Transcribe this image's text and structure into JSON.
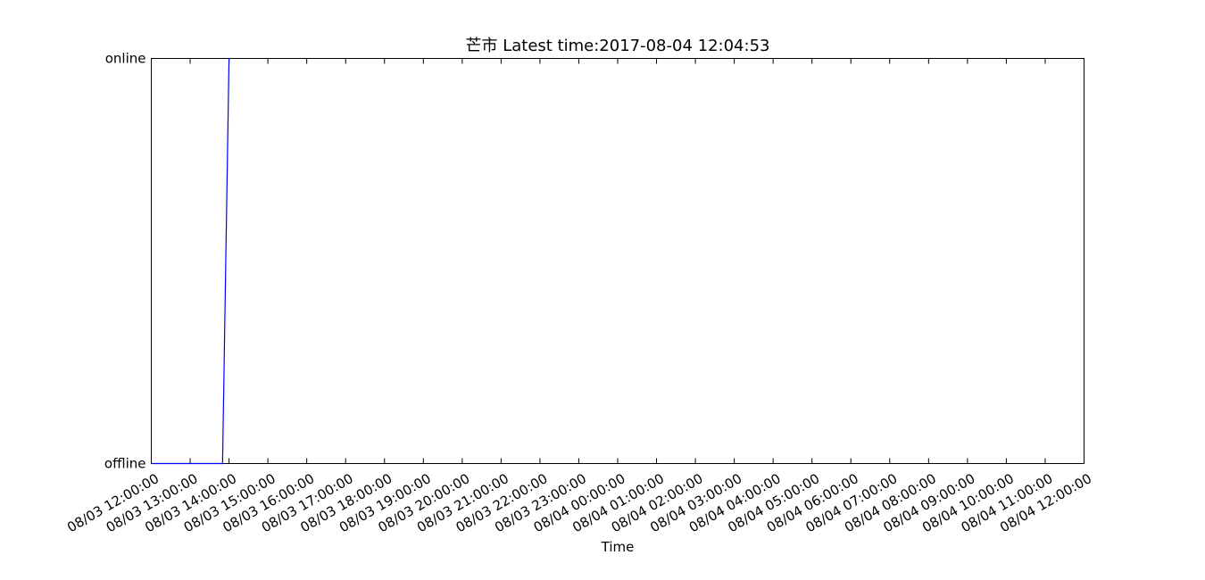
{
  "chart_data": {
    "type": "line",
    "title": "芒市 Latest time:2017-08-04 12:04:53",
    "xlabel": "Time",
    "ylabel": "",
    "y_categories": [
      "offline",
      "online"
    ],
    "x_ticks": [
      "08/03 12:00:00",
      "08/03 13:00:00",
      "08/03 14:00:00",
      "08/03 15:00:00",
      "08/03 16:00:00",
      "08/03 17:00:00",
      "08/03 18:00:00",
      "08/03 19:00:00",
      "08/03 20:00:00",
      "08/03 21:00:00",
      "08/03 22:00:00",
      "08/03 23:00:00",
      "08/04 00:00:00",
      "08/04 01:00:00",
      "08/04 02:00:00",
      "08/04 03:00:00",
      "08/04 04:00:00",
      "08/04 05:00:00",
      "08/04 06:00:00",
      "08/04 07:00:00",
      "08/04 08:00:00",
      "08/04 09:00:00",
      "08/04 10:00:00",
      "08/04 11:00:00",
      "08/04 12:00:00"
    ],
    "xlim": [
      "08/03 12:00:00",
      "08/04 12:00:00"
    ],
    "grid": false,
    "series": [
      {
        "color": "#0000ff",
        "points": [
          {
            "x": "08/03 12:00:00",
            "y": "offline"
          },
          {
            "x": "08/03 13:50:00",
            "y": "offline"
          },
          {
            "x": "08/03 14:00:00",
            "y": "online"
          }
        ]
      }
    ]
  }
}
